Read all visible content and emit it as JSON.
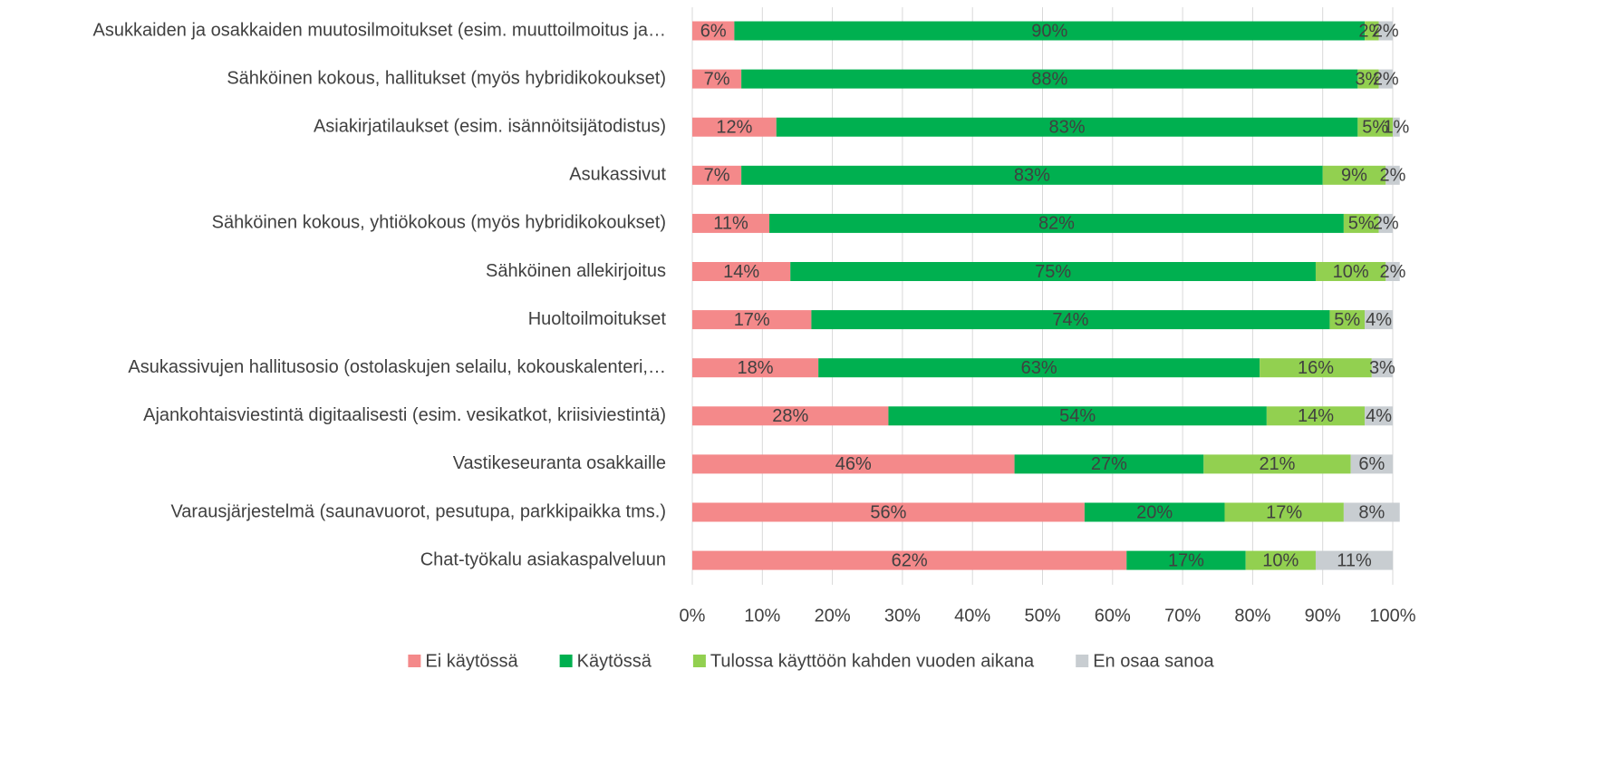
{
  "chart_data": {
    "type": "stacked_barh",
    "categories": [
      "Asukkaiden ja osakkaiden muutosilmoitukset (esim. muuttoilmoitus ja…",
      "Sähköinen kokous, hallitukset (myös hybridikokoukset)",
      "Asiakirjatilaukset (esim. isännöitsijätodistus)",
      "Asukassivut",
      "Sähköinen kokous, yhtiökokous (myös hybridikokoukset)",
      "Sähköinen allekirjoitus",
      "Huoltoilmoitukset",
      "Asukassivujen hallitusosio (ostolaskujen selailu, kokouskalenteri,…",
      "Ajankohtaisviestintä digitaalisesti (esim. vesikatkot, kriisiviestintä)",
      "Vastikeseuranta osakkaille",
      "Varausjärjestelmä (saunavuorot, pesutupa, parkkipaikka tms.)",
      "Chat-työkalu asiakaspalveluun"
    ],
    "series": [
      {
        "name": "Ei käytössä",
        "color": "#f4898a",
        "values": [
          6,
          7,
          12,
          7,
          11,
          14,
          17,
          18,
          28,
          46,
          56,
          62
        ],
        "value_labels": [
          "6%",
          "7%",
          "12%",
          "7%",
          "11%",
          "14%",
          "17%",
          "18%",
          "28%",
          "46%",
          "56%",
          "62%"
        ]
      },
      {
        "name": "Käytössä",
        "color": "#00b050",
        "values": [
          90,
          88,
          83,
          83,
          82,
          75,
          74,
          63,
          54,
          27,
          20,
          17
        ],
        "value_labels": [
          "90%",
          "88%",
          "83%",
          "83%",
          "82%",
          "75%",
          "74%",
          "63%",
          "54%",
          "27%",
          "20%",
          "17%"
        ]
      },
      {
        "name": "Tulossa käyttöön kahden vuoden aikana",
        "color": "#92d050",
        "values": [
          2,
          3,
          5,
          9,
          5,
          10,
          5,
          16,
          14,
          21,
          17,
          10
        ],
        "value_labels": [
          "2%",
          "3%",
          "5%",
          "9%",
          "5%",
          "10%",
          "5%",
          "16%",
          "14%",
          "21%",
          "17%",
          "10%"
        ]
      },
      {
        "name": "En osaa sanoa",
        "color": "#c8cdd1",
        "values": [
          2,
          2,
          1,
          2,
          2,
          2,
          4,
          3,
          4,
          6,
          8,
          11
        ],
        "value_labels": [
          "2%",
          "2%",
          "1%",
          "2%",
          "2%",
          "2%",
          "4%",
          "3%",
          "4%",
          "6%",
          "8%",
          "11%"
        ]
      }
    ],
    "xlim": [
      0,
      100
    ],
    "xticks": [
      {
        "value": 0,
        "label": "0%"
      },
      {
        "value": 10,
        "label": "10%"
      },
      {
        "value": 20,
        "label": "20%"
      },
      {
        "value": 30,
        "label": "30%"
      },
      {
        "value": 40,
        "label": "40%"
      },
      {
        "value": 50,
        "label": "50%"
      },
      {
        "value": 60,
        "label": "60%"
      },
      {
        "value": 70,
        "label": "70%"
      },
      {
        "value": 80,
        "label": "80%"
      },
      {
        "value": 90,
        "label": "90%"
      },
      {
        "value": 100,
        "label": "100%"
      }
    ],
    "grid": true,
    "legend": "bottom"
  }
}
